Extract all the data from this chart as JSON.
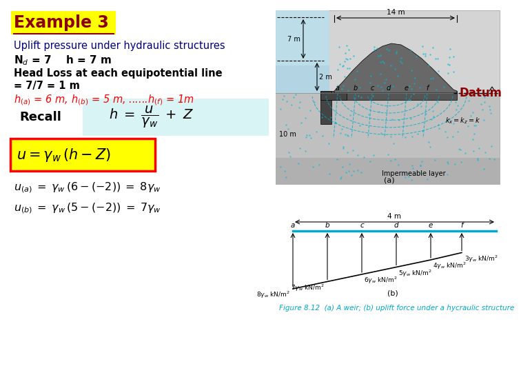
{
  "bg_color": "#ffffff",
  "yellow_bg": "#ffff00",
  "cyan_bg": "#d8f4f4",
  "title_color": "#8B0000",
  "subtitle_color": "#000080",
  "red_color": "#ff0000",
  "black": "#000000",
  "cyan_line": "#00aacc",
  "datum_color": "#8B0000",
  "figure_caption": "Figure 8.12  (a) A weir; (b) uplift force under a hycraulic structure",
  "title_text": "Example 3",
  "subtitle_text": "Uplift pressure under hydraulic structures",
  "head_loss_line1": "Head Loss at each equipotential line",
  "head_loss_line2": "= 7/7 = 1 m",
  "recall_text": "Recall",
  "pressure_values": [
    8,
    7,
    6,
    5,
    4,
    3
  ],
  "pt_labels": [
    "a",
    "b",
    "c",
    "d",
    "e",
    "f"
  ]
}
